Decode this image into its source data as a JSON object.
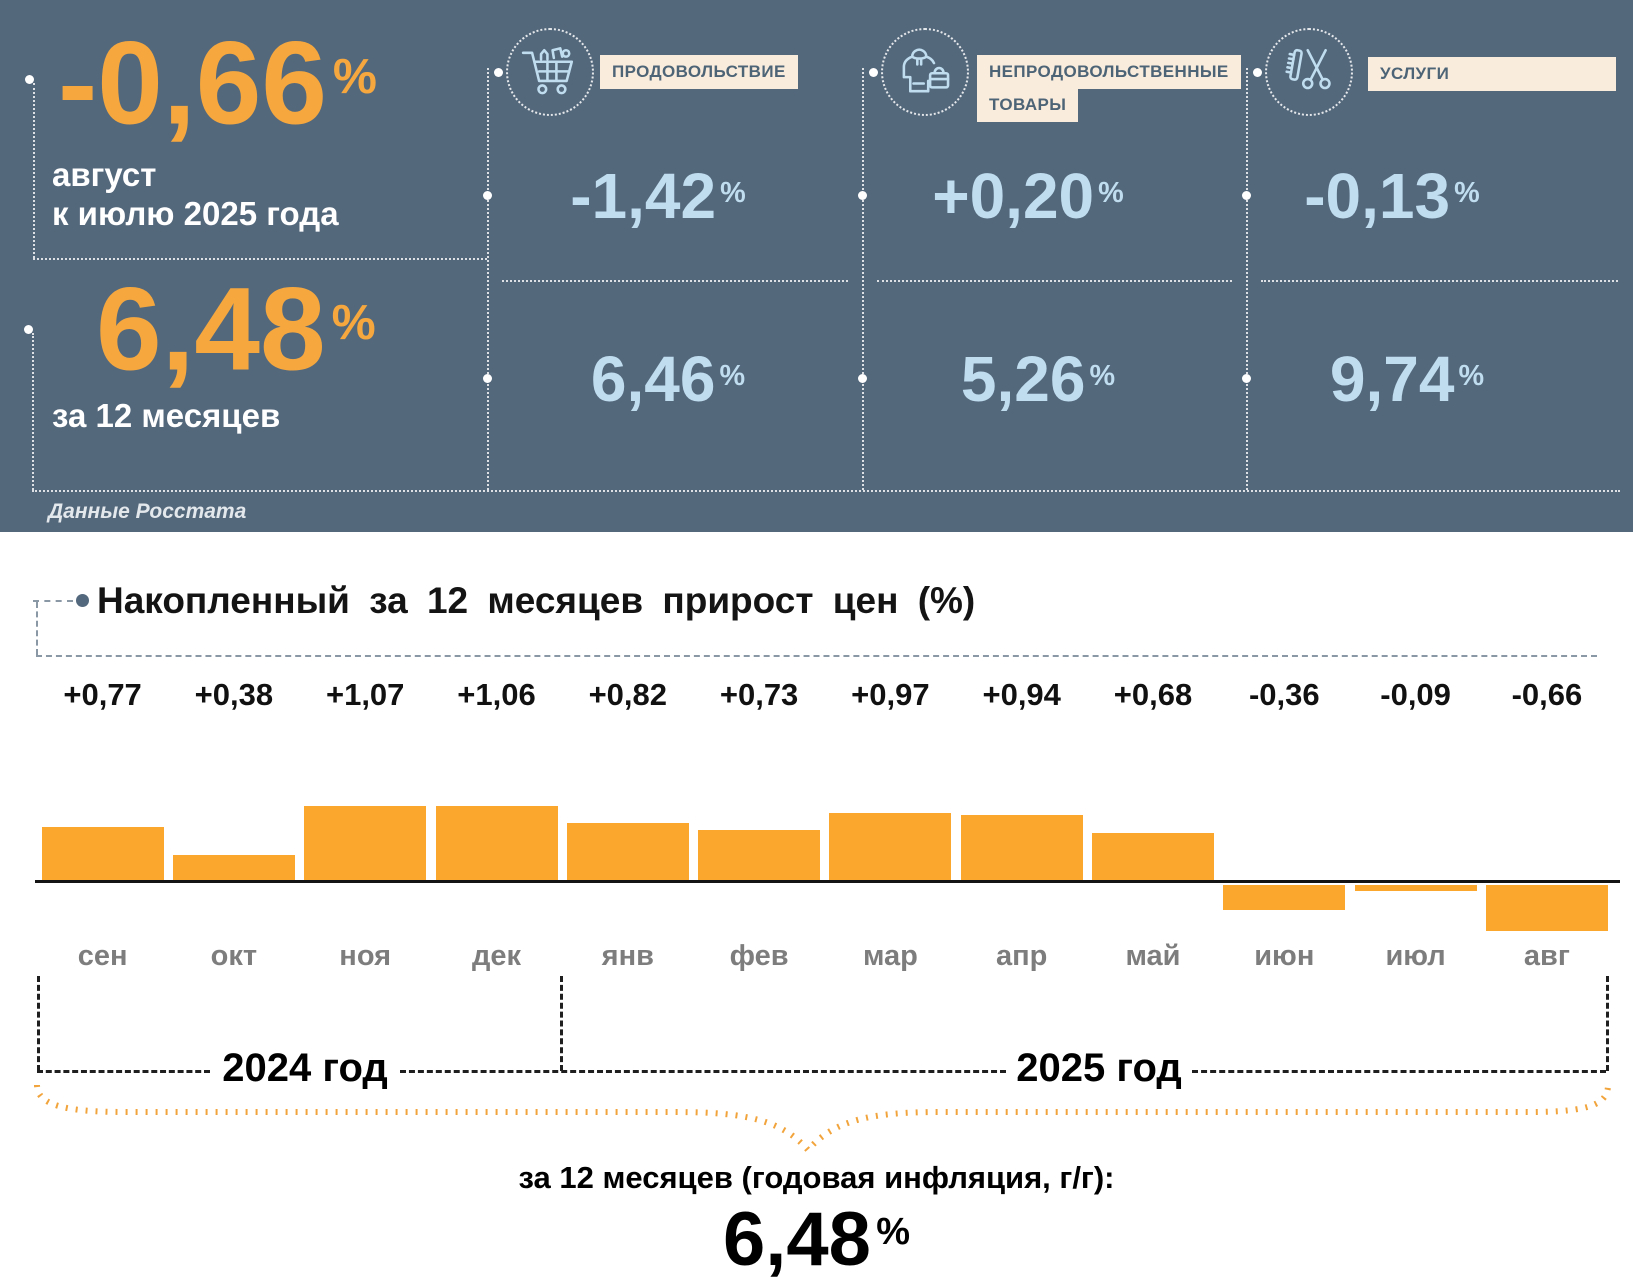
{
  "colors": {
    "background": "#54687c",
    "accent_orange": "#f6a83e",
    "bar_orange": "#fba62c",
    "light_blue": "#bfddef",
    "cream_label_bg": "#faecdc",
    "label_text": "#4d6477",
    "month_gray": "#7d7d7d"
  },
  "header": {
    "monthly": {
      "value": "-0,66",
      "unit": "%",
      "caption_line1": "август",
      "caption_line2": "к июлю 2025 года"
    },
    "annual": {
      "value": "6,48",
      "unit": "%",
      "caption": "за 12 месяцев"
    },
    "source": "Данные Росстата",
    "categories": [
      {
        "icon": "shopping-cart-icon",
        "label_line1": "ПРОДОВОЛЬСТВИЕ",
        "monthly": "-1,42",
        "annual": "6,46",
        "unit": "%"
      },
      {
        "icon": "clothing-and-bag-icon",
        "label_line1": "НЕПРОДОВОЛЬСТВЕННЫЕ",
        "label_line2": "ТОВАРЫ",
        "monthly": "+0,20",
        "annual": "5,26",
        "unit": "%"
      },
      {
        "icon": "comb-and-scissors-icon",
        "label_line1": "УСЛУГИ",
        "monthly": "-0,13",
        "annual": "9,74",
        "unit": "%"
      }
    ]
  },
  "chart_data": {
    "type": "bar",
    "title": "Накопленный за 12 месяцев прирост цен (%)",
    "categories": [
      "сен",
      "окт",
      "ноя",
      "дек",
      "янв",
      "фев",
      "мар",
      "апр",
      "май",
      "июн",
      "июл",
      "авг"
    ],
    "values": [
      0.77,
      0.38,
      1.07,
      1.06,
      0.82,
      0.73,
      0.97,
      0.94,
      0.68,
      -0.36,
      -0.09,
      -0.66
    ],
    "value_labels": [
      "+0,77",
      "+0,38",
      "+1,07",
      "+1,06",
      "+0,82",
      "+0,73",
      "+0,97",
      "+0,94",
      "+0,68",
      "-0,36",
      "-0,09",
      "-0,66"
    ],
    "bar_color": "#fba62c",
    "baseline": 0,
    "ylim": [
      -0.8,
      1.2
    ],
    "grid": false,
    "legend": "none",
    "year_groups": [
      {
        "label": "2024 год",
        "from": "сен",
        "to": "дек"
      },
      {
        "label": "2025 год",
        "from": "янв",
        "to": "авг"
      }
    ]
  },
  "footer": {
    "caption": "за 12 месяцев (годовая инфляция, г/г):",
    "value": "6,48",
    "unit": "%"
  }
}
